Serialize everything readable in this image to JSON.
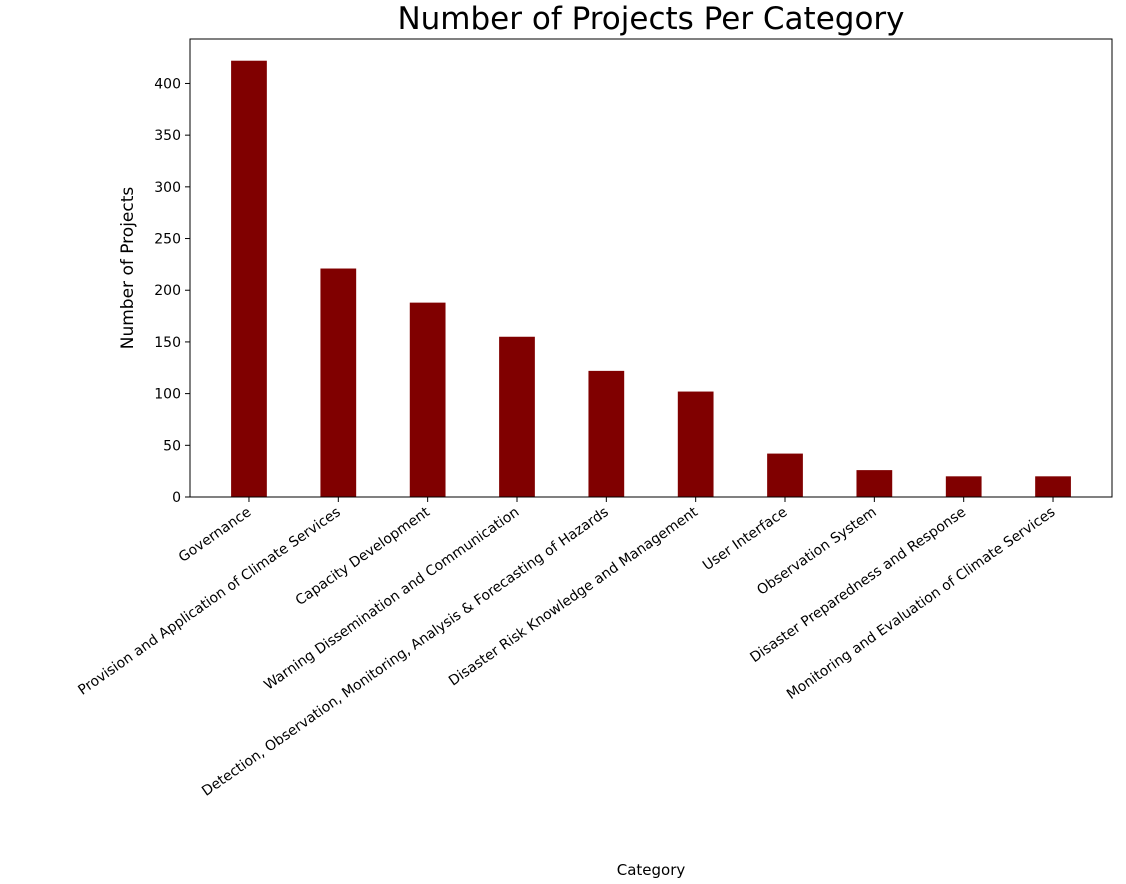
{
  "chart_data": {
    "type": "bar",
    "title": "Number of Projects Per Category",
    "xlabel": "Category",
    "ylabel": "Number of Projects",
    "categories": [
      "Governance",
      "Provision and Application of Climate Services",
      "Capacity Development",
      "Warning Dissemination and Communication",
      "Detection, Observation, Monitoring, Analysis & Forecasting of Hazards",
      "Disaster Risk Knowledge and Management",
      "User Interface",
      "Observation System",
      "Disaster Preparedness and Response",
      "Monitoring and Evaluation of Climate Services"
    ],
    "values": [
      422,
      221,
      188,
      155,
      122,
      102,
      42,
      26,
      20,
      20
    ],
    "yticks": [
      0,
      50,
      100,
      150,
      200,
      250,
      300,
      350,
      400
    ],
    "ylim": [
      0,
      443
    ],
    "bar_color": "#800000",
    "grid": false,
    "legend": "none"
  }
}
